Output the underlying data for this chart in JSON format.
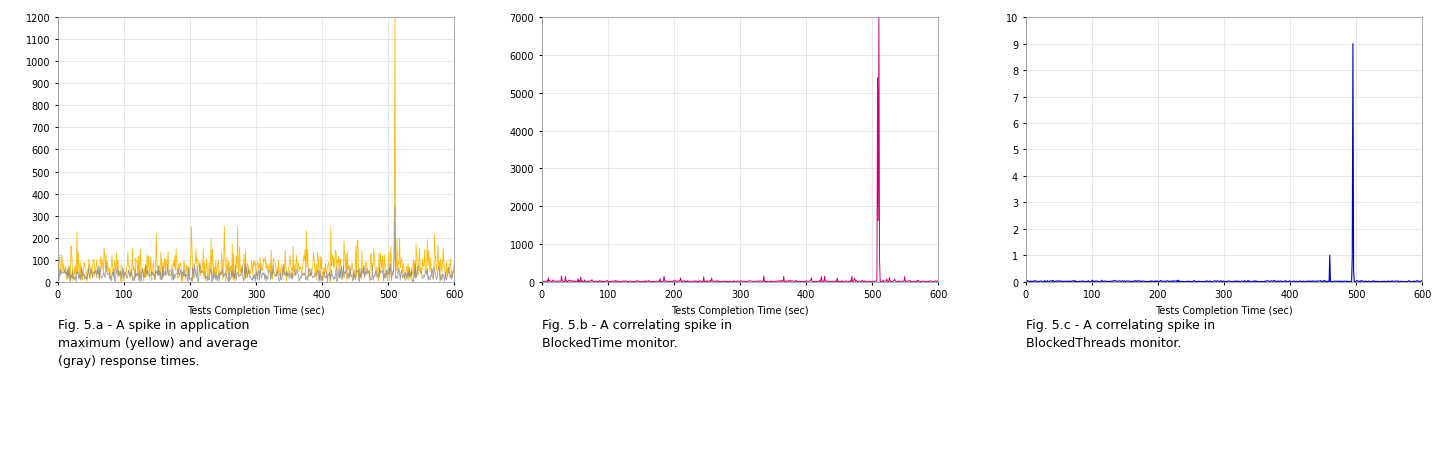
{
  "fig_width": 14.44,
  "fig_height": 4.56,
  "background_color": "#ffffff",
  "chart_a": {
    "xlabel": "Tests Completion Time (sec)",
    "xlim": [
      0,
      600
    ],
    "ylim": [
      0,
      1200
    ],
    "yticks": [
      0,
      100,
      200,
      300,
      400,
      500,
      600,
      700,
      800,
      900,
      1000,
      1100,
      1200
    ],
    "xticks": [
      0,
      100,
      200,
      300,
      400,
      500,
      600
    ],
    "max_color": "#FFB800",
    "avg_color": "#888888",
    "spike_x": 510,
    "spike_max": 1200,
    "spike_avg": 340
  },
  "chart_b": {
    "xlabel": "Tests Completion Time (sec)",
    "xlim": [
      0,
      600
    ],
    "ylim": [
      0,
      7000
    ],
    "yticks": [
      0,
      1000,
      2000,
      3000,
      4000,
      5000,
      6000,
      7000
    ],
    "xticks": [
      0,
      100,
      200,
      300,
      400,
      500,
      600
    ],
    "line_color": "#CC0077",
    "spike_x": 510,
    "spike_max": 7000,
    "spike_secondary": 5400
  },
  "chart_c": {
    "xlabel": "Tests Completion Time (sec)",
    "xlim": [
      0,
      600
    ],
    "ylim": [
      0,
      10
    ],
    "yticks": [
      0,
      1,
      2,
      3,
      4,
      5,
      6,
      7,
      8,
      9,
      10
    ],
    "xticks": [
      0,
      100,
      200,
      300,
      400,
      500,
      600
    ],
    "line_color": "#0000CC",
    "spike_x": 495,
    "spike_max": 9,
    "small_spike_x": 460,
    "small_spike_val": 1
  },
  "captions": [
    "Fig. 5.a - A spike in application\nmaximum (yellow) and average\n(gray) response times.",
    "Fig. 5.b - A correlating spike in\nBlockedTime monitor.",
    "Fig. 5.c - A correlating spike in\nBlockedThreads monitor."
  ],
  "grid_color": "#dddddd",
  "axis_color": "#888888",
  "tick_fontsize": 7,
  "label_fontsize": 7,
  "caption_fontsize": 9
}
